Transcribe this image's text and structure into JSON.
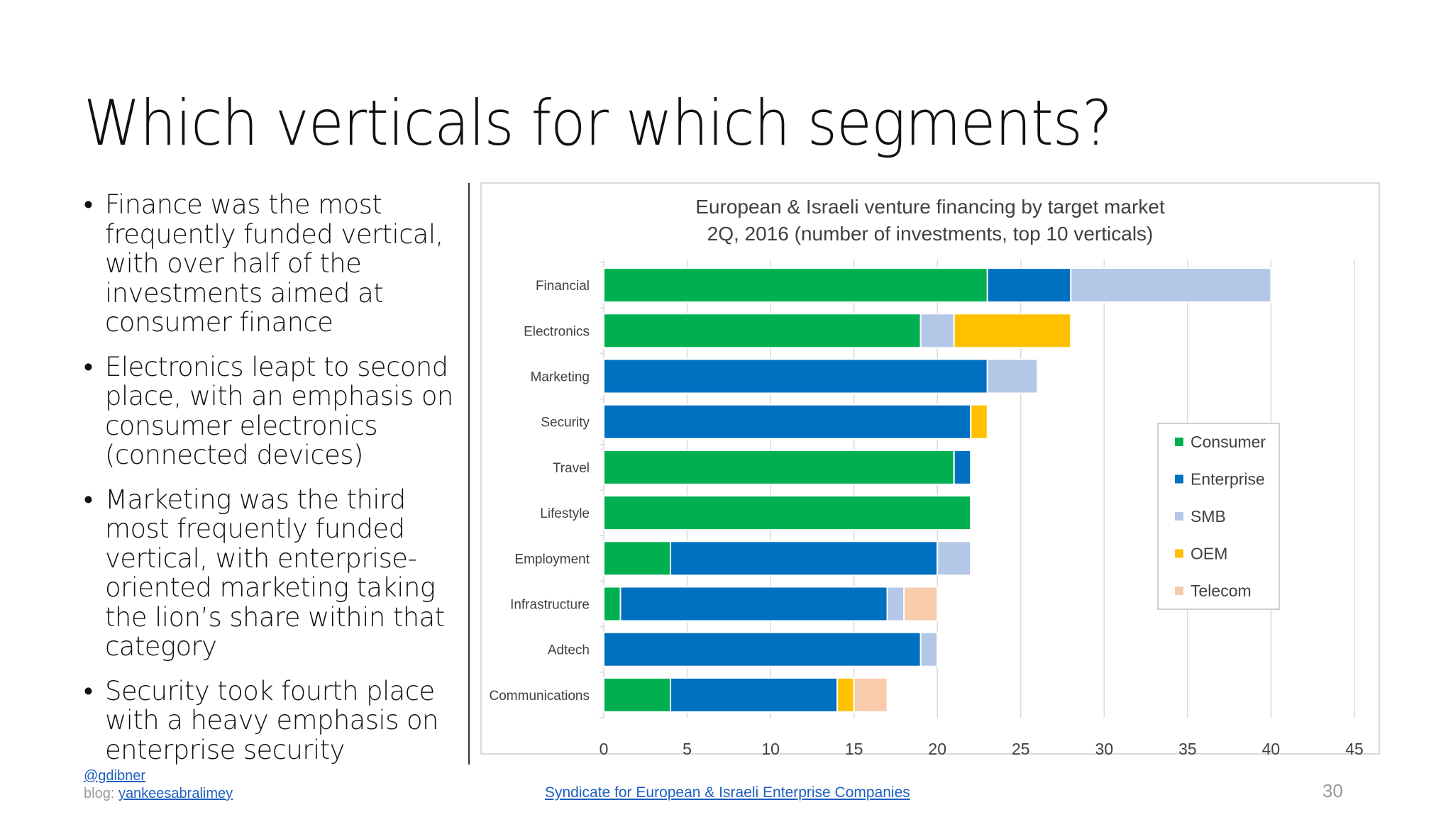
{
  "slide": {
    "title": "Which verticals for which segments?",
    "bullets": [
      "Finance was the most frequently funded vertical, with over half of the investments aimed at consumer finance",
      "Electronics leapt to second place, with an emphasis on consumer electronics (connected devices)",
      "Marketing was the third most frequently funded vertical, with enterprise-oriented marketing taking the lion’s share within that category",
      "Security took fourth place with a heavy emphasis on enterprise security"
    ],
    "bullet_glyph": "•",
    "footer": {
      "twitter": "@gdibner",
      "blog_label": "blog: ",
      "blog_link": "yankeesabralimey",
      "source_link": "Syndicate for European & Israeli Enterprise Companies",
      "page_number": "30"
    }
  },
  "chart_data": {
    "type": "bar",
    "orientation": "horizontal",
    "stacked": true,
    "title": "European & Israeli venture financing by target market",
    "subtitle": "2Q, 2016 (number of investments, top 10 verticals)",
    "xlabel": "",
    "ylabel": "",
    "xlim": [
      0,
      45
    ],
    "xticks": [
      0,
      5,
      10,
      15,
      20,
      25,
      30,
      35,
      40,
      45
    ],
    "grid": true,
    "legend_position": "right",
    "categories": [
      "Financial",
      "Electronics",
      "Marketing",
      "Security",
      "Travel",
      "Lifestyle",
      "Employment",
      "Infrastructure",
      "Adtech",
      "Communications"
    ],
    "series": [
      {
        "name": "Consumer",
        "color": "#00b050",
        "values": [
          23,
          19,
          0,
          0,
          21,
          22,
          4,
          1,
          0,
          4
        ]
      },
      {
        "name": "Enterprise",
        "color": "#0070c0",
        "values": [
          5,
          0,
          23,
          22,
          1,
          0,
          16,
          16,
          19,
          10
        ]
      },
      {
        "name": "SMB",
        "color": "#b4c7e7",
        "values": [
          12,
          2,
          3,
          0,
          0,
          0,
          2,
          1,
          1,
          0
        ]
      },
      {
        "name": "OEM",
        "color": "#ffc000",
        "values": [
          0,
          7,
          0,
          1,
          0,
          0,
          0,
          0,
          0,
          1
        ]
      },
      {
        "name": "Telecom",
        "color": "#f8cbad",
        "values": [
          0,
          0,
          0,
          0,
          0,
          0,
          0,
          2,
          0,
          2
        ]
      }
    ]
  }
}
